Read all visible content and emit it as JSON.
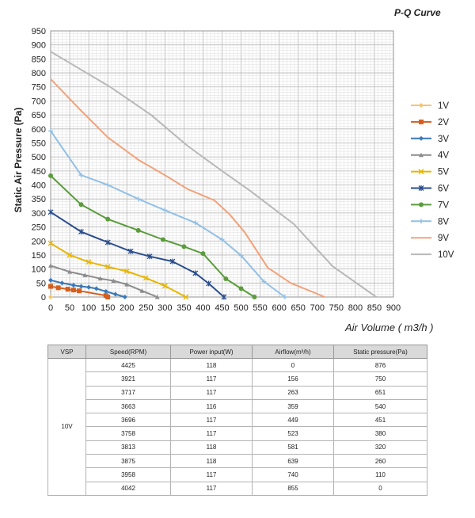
{
  "chart_data": {
    "type": "line",
    "title": "P-Q Curve",
    "xlabel": "Air Volume ( m3/h )",
    "ylabel": "Static Air Pressure  (Pa)",
    "xlim": [
      0,
      900
    ],
    "ylim": [
      0,
      950
    ],
    "x_ticks": [
      0,
      50,
      100,
      150,
      200,
      250,
      300,
      350,
      400,
      450,
      500,
      550,
      600,
      650,
      700,
      750,
      800,
      850,
      900
    ],
    "y_ticks": [
      0,
      50,
      100,
      150,
      200,
      250,
      300,
      350,
      400,
      450,
      500,
      550,
      600,
      650,
      700,
      750,
      800,
      850,
      900,
      950
    ],
    "grid": true,
    "legend_position": "right",
    "series": [
      {
        "name": "1V",
        "color": "#f5c46b",
        "marker": "diamond",
        "points": [
          [
            0,
            0
          ]
        ]
      },
      {
        "name": "2V",
        "color": "#d45f1e",
        "marker": "square",
        "points": [
          [
            0,
            38
          ],
          [
            20,
            33
          ],
          [
            45,
            28
          ],
          [
            60,
            25
          ],
          [
            75,
            22
          ],
          [
            145,
            5
          ],
          [
            150,
            0
          ]
        ]
      },
      {
        "name": "3V",
        "color": "#3a78b8",
        "marker": "diamond",
        "points": [
          [
            0,
            60
          ],
          [
            30,
            50
          ],
          [
            60,
            42
          ],
          [
            80,
            38
          ],
          [
            100,
            35
          ],
          [
            120,
            30
          ],
          [
            145,
            20
          ],
          [
            170,
            10
          ],
          [
            195,
            0
          ]
        ]
      },
      {
        "name": "4V",
        "color": "#8c8c8c",
        "marker": "triangle",
        "points": [
          [
            0,
            112
          ],
          [
            50,
            90
          ],
          [
            90,
            78
          ],
          [
            130,
            66
          ],
          [
            165,
            58
          ],
          [
            200,
            45
          ],
          [
            240,
            22
          ],
          [
            280,
            0
          ]
        ]
      },
      {
        "name": "5V",
        "color": "#e8b600",
        "marker": "x",
        "points": [
          [
            0,
            192
          ],
          [
            50,
            150
          ],
          [
            100,
            125
          ],
          [
            150,
            108
          ],
          [
            200,
            92
          ],
          [
            250,
            68
          ],
          [
            300,
            40
          ],
          [
            355,
            0
          ]
        ]
      },
      {
        "name": "6V",
        "color": "#2b4e8c",
        "marker": "star",
        "points": [
          [
            0,
            303
          ],
          [
            80,
            233
          ],
          [
            150,
            195
          ],
          [
            210,
            163
          ],
          [
            260,
            145
          ],
          [
            320,
            127
          ],
          [
            380,
            85
          ],
          [
            415,
            48
          ],
          [
            455,
            0
          ]
        ]
      },
      {
        "name": "7V",
        "color": "#5a9c3c",
        "marker": "circle",
        "points": [
          [
            0,
            433
          ],
          [
            80,
            330
          ],
          [
            150,
            278
          ],
          [
            230,
            238
          ],
          [
            295,
            205
          ],
          [
            350,
            180
          ],
          [
            400,
            155
          ],
          [
            460,
            65
          ],
          [
            500,
            30
          ],
          [
            535,
            0
          ]
        ]
      },
      {
        "name": "8V",
        "color": "#92c0e6",
        "marker": "plus",
        "points": [
          [
            0,
            593
          ],
          [
            80,
            435
          ],
          [
            150,
            400
          ],
          [
            230,
            350
          ],
          [
            300,
            310
          ],
          [
            380,
            265
          ],
          [
            450,
            205
          ],
          [
            500,
            148
          ],
          [
            560,
            55
          ],
          [
            615,
            0
          ]
        ]
      },
      {
        "name": "9V",
        "color": "#f2a27a",
        "marker": "none",
        "points": [
          [
            0,
            778
          ],
          [
            80,
            665
          ],
          [
            150,
            570
          ],
          [
            230,
            490
          ],
          [
            300,
            435
          ],
          [
            360,
            385
          ],
          [
            430,
            345
          ],
          [
            470,
            295
          ],
          [
            510,
            230
          ],
          [
            570,
            105
          ],
          [
            630,
            50
          ],
          [
            720,
            0
          ]
        ]
      },
      {
        "name": "10V",
        "color": "#b8b8b8",
        "marker": "none",
        "points": [
          [
            0,
            876
          ],
          [
            156,
            750
          ],
          [
            263,
            651
          ],
          [
            359,
            540
          ],
          [
            449,
            451
          ],
          [
            523,
            380
          ],
          [
            581,
            320
          ],
          [
            639,
            260
          ],
          [
            740,
            110
          ],
          [
            855,
            0
          ]
        ]
      }
    ]
  },
  "table": {
    "headers": [
      "VSP",
      "Speed(RPM)",
      "Power input(W)",
      "Airflow(m³/h)",
      "Static pressure(Pa)"
    ],
    "vsp": "10V",
    "rows": [
      [
        "4425",
        "118",
        "0",
        "876"
      ],
      [
        "3921",
        "117",
        "156",
        "750"
      ],
      [
        "3717",
        "117",
        "263",
        "651"
      ],
      [
        "3663",
        "116",
        "359",
        "540"
      ],
      [
        "3696",
        "117",
        "449",
        "451"
      ],
      [
        "3758",
        "117",
        "523",
        "380"
      ],
      [
        "3813",
        "118",
        "581",
        "320"
      ],
      [
        "3875",
        "118",
        "639",
        "260"
      ],
      [
        "3958",
        "117",
        "740",
        "110"
      ],
      [
        "4042",
        "117",
        "855",
        "0"
      ]
    ]
  }
}
